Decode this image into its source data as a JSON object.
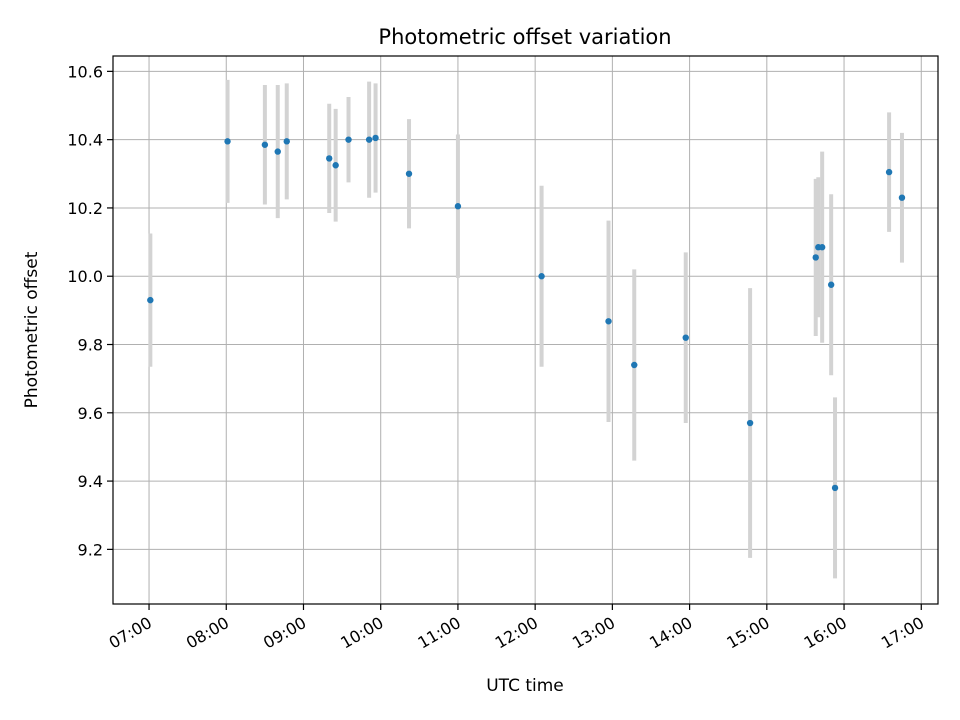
{
  "chart_data": {
    "type": "scatter",
    "title": "Photometric offset variation",
    "xlabel": "UTC time",
    "ylabel": "Photometric offset",
    "x_axis_kind": "time",
    "xlim": [
      "06:32",
      "17:13"
    ],
    "ylim": [
      9.04,
      10.645
    ],
    "x_ticks": [
      "07:00",
      "08:00",
      "09:00",
      "10:00",
      "11:00",
      "12:00",
      "13:00",
      "14:00",
      "15:00",
      "16:00",
      "17:00"
    ],
    "y_ticks": [
      9.2,
      9.4,
      9.6,
      9.8,
      10.0,
      10.2,
      10.4,
      10.6
    ],
    "grid": true,
    "marker_color": "#1f77b4",
    "errorbar_color": "#d3d3d3",
    "points": [
      {
        "x": "07:01",
        "y": 9.93,
        "err": 0.195
      },
      {
        "x": "08:01",
        "y": 10.395,
        "err": 0.18
      },
      {
        "x": "08:30",
        "y": 10.385,
        "err": 0.175
      },
      {
        "x": "08:40",
        "y": 10.365,
        "err": 0.195
      },
      {
        "x": "08:47",
        "y": 10.395,
        "err": 0.17
      },
      {
        "x": "09:20",
        "y": 10.345,
        "err": 0.16
      },
      {
        "x": "09:25",
        "y": 10.325,
        "err": 0.165
      },
      {
        "x": "09:35",
        "y": 10.4,
        "err": 0.125
      },
      {
        "x": "09:51",
        "y": 10.4,
        "err": 0.17
      },
      {
        "x": "09:56",
        "y": 10.405,
        "err": 0.16
      },
      {
        "x": "10:22",
        "y": 10.3,
        "err": 0.16
      },
      {
        "x": "11:00",
        "y": 10.205,
        "err": 0.21
      },
      {
        "x": "12:05",
        "y": 10.0,
        "err": 0.265
      },
      {
        "x": "12:57",
        "y": 9.868,
        "err": 0.295
      },
      {
        "x": "13:17",
        "y": 9.74,
        "err": 0.28
      },
      {
        "x": "13:57",
        "y": 9.82,
        "err": 0.25
      },
      {
        "x": "14:47",
        "y": 9.57,
        "err": 0.395
      },
      {
        "x": "15:38",
        "y": 10.055,
        "err": 0.23
      },
      {
        "x": "15:40",
        "y": 10.085,
        "err": 0.205
      },
      {
        "x": "15:43",
        "y": 10.085,
        "err": 0.28
      },
      {
        "x": "15:50",
        "y": 9.975,
        "err": 0.265
      },
      {
        "x": "15:53",
        "y": 9.38,
        "err": 0.265
      },
      {
        "x": "16:35",
        "y": 10.305,
        "err": 0.175
      },
      {
        "x": "16:45",
        "y": 10.23,
        "err": 0.19
      }
    ]
  }
}
